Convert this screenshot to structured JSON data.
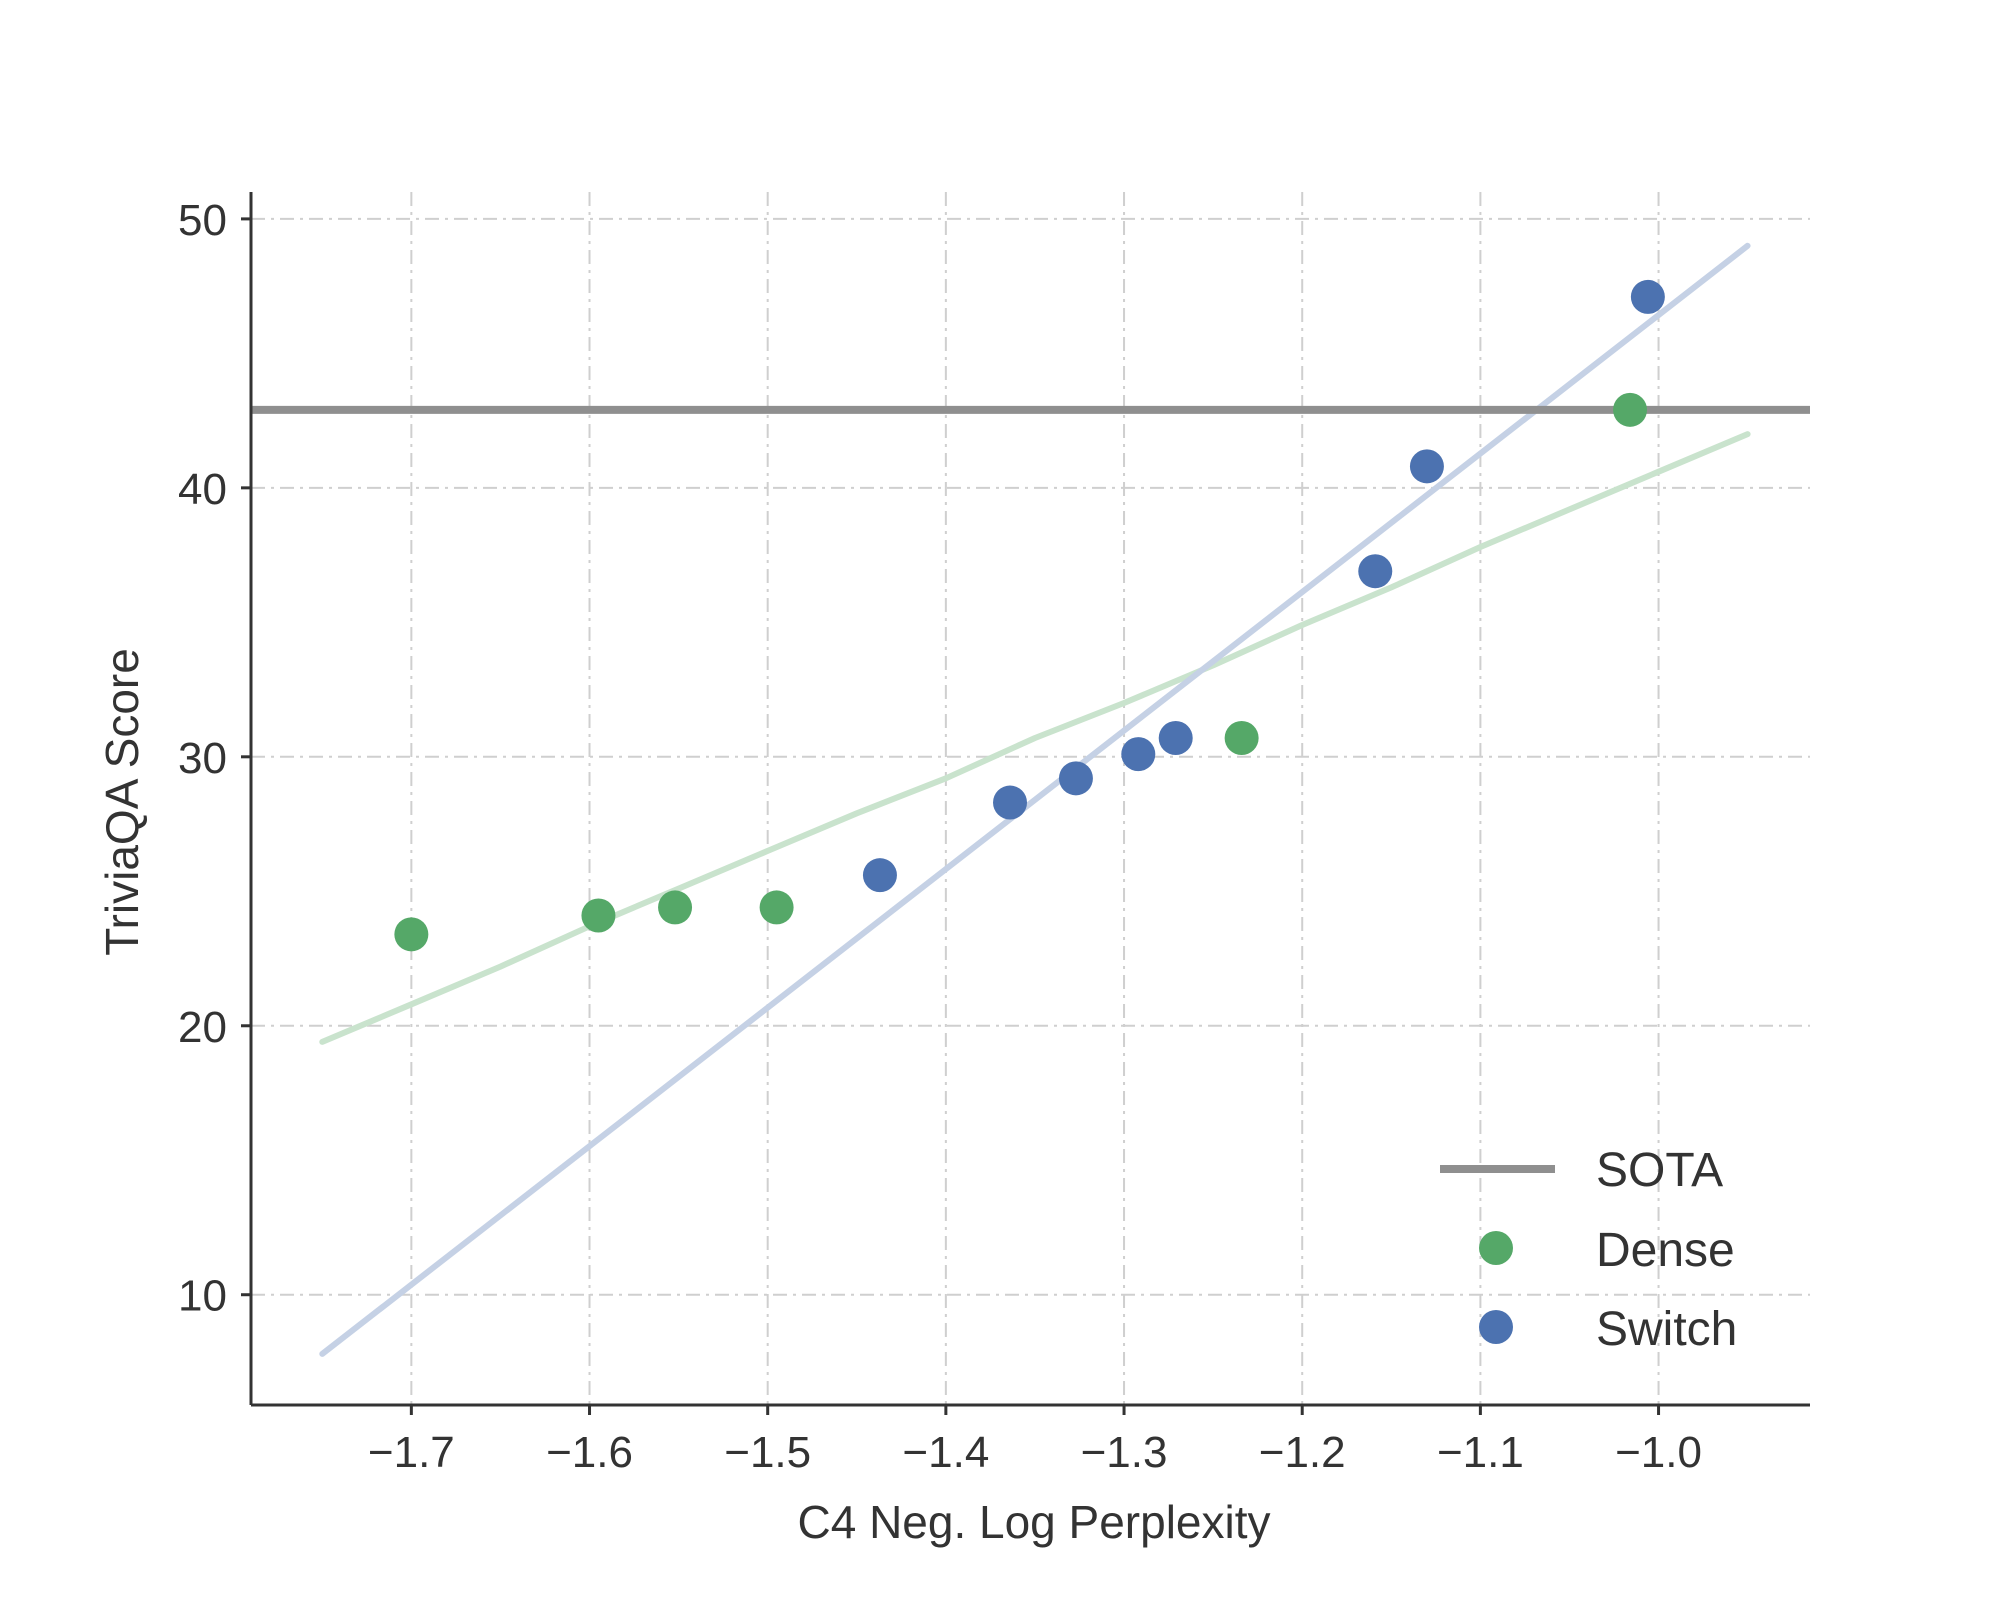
{
  "chart_data": {
    "type": "scatter",
    "xlabel": "C4 Neg. Log Perplexity",
    "ylabel": "TriviaQA Score",
    "xlim": [
      -1.79,
      -0.915
    ],
    "ylim": [
      5.9,
      51.0
    ],
    "xticks": [
      -1.7,
      -1.6,
      -1.5,
      -1.4,
      -1.3,
      -1.2,
      -1.1,
      -1.0
    ],
    "xtick_labels": [
      "−1.7",
      "−1.6",
      "−1.5",
      "−1.4",
      "−1.3",
      "−1.2",
      "−1.1",
      "−1.0"
    ],
    "yticks": [
      10,
      20,
      30,
      40,
      50
    ],
    "ytick_labels": [
      "10",
      "20",
      "30",
      "40",
      "50"
    ],
    "grid": true,
    "legend_position": "bottom-right",
    "sota": {
      "name": "SOTA",
      "value": 42.9,
      "color": "#8f8f8f"
    },
    "series": [
      {
        "name": "Dense",
        "color": "#55a868",
        "x": [
          -1.7,
          -1.595,
          -1.552,
          -1.495,
          -1.234,
          -1.016
        ],
        "y": [
          23.4,
          24.1,
          24.4,
          24.4,
          30.7,
          42.9
        ],
        "fit": {
          "color": "#c9e3cd",
          "x": [
            -1.75,
            -1.7,
            -1.65,
            -1.6,
            -1.55,
            -1.5,
            -1.45,
            -1.4,
            -1.35,
            -1.3,
            -1.25,
            -1.2,
            -1.15,
            -1.1,
            -1.05,
            -1.0,
            -0.95
          ],
          "y": [
            19.4,
            20.8,
            22.2,
            23.7,
            25.1,
            26.5,
            27.9,
            29.2,
            30.7,
            32.0,
            33.4,
            34.9,
            36.3,
            37.8,
            39.2,
            40.6,
            42.0
          ]
        }
      },
      {
        "name": "Switch",
        "color": "#4c72b0",
        "x": [
          -1.437,
          -1.364,
          -1.327,
          -1.292,
          -1.271,
          -1.159,
          -1.13,
          -1.006
        ],
        "y": [
          25.6,
          28.3,
          29.2,
          30.1,
          30.7,
          36.9,
          40.8,
          47.1
        ],
        "fit": {
          "color": "#c5d1e5",
          "x": [
            -1.75,
            -0.95
          ],
          "y": [
            7.8,
            49.0
          ]
        }
      }
    ]
  }
}
